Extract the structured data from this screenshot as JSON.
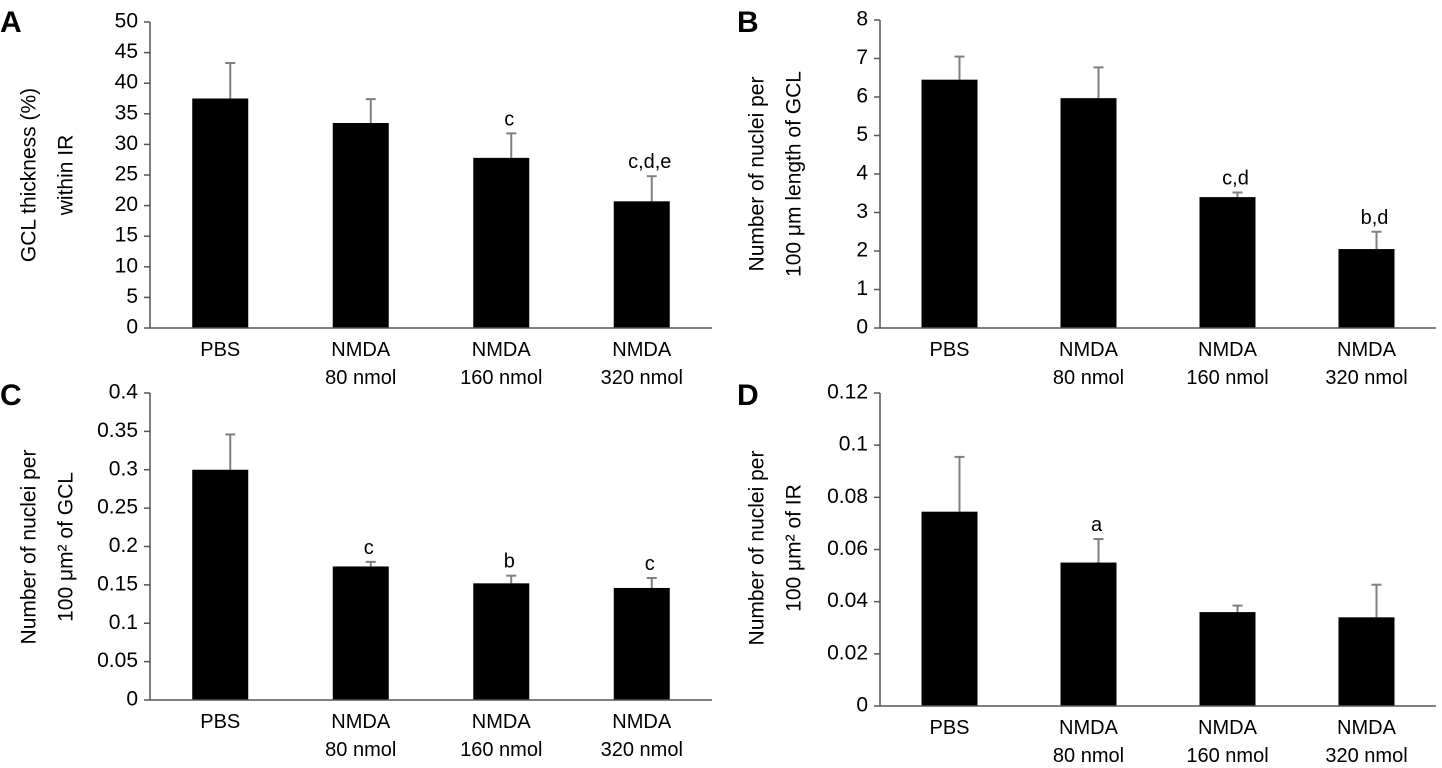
{
  "chart_data": [
    {
      "panel": "A",
      "type": "bar",
      "categories": [
        [
          "PBS"
        ],
        [
          "NMDA",
          "80 nmol"
        ],
        [
          "NMDA",
          "160 nmol"
        ],
        [
          "NMDA",
          "320 nmol"
        ]
      ],
      "values": [
        37.5,
        33.5,
        27.8,
        20.7
      ],
      "errors": [
        5.8,
        3.9,
        4.0,
        4.1
      ],
      "annotations": [
        "",
        "",
        "c",
        "c,d,e"
      ],
      "ylabel": [
        "GCL thickness (%)",
        "within IR"
      ],
      "ylim": [
        0,
        50
      ],
      "yticks": [
        "0",
        "5",
        "10",
        "15",
        "20",
        "25",
        "30",
        "35",
        "40",
        "45",
        "50"
      ]
    },
    {
      "panel": "B",
      "type": "bar",
      "categories": [
        [
          "PBS"
        ],
        [
          "NMDA",
          "80 nmol"
        ],
        [
          "NMDA",
          "160 nmol"
        ],
        [
          "NMDA",
          "320 nmol"
        ]
      ],
      "values": [
        6.45,
        5.97,
        3.4,
        2.05
      ],
      "errors": [
        0.6,
        0.8,
        0.12,
        0.45
      ],
      "annotations": [
        "",
        "",
        "c,d",
        "b,d"
      ],
      "ylabel": [
        "Number of nuclei per",
        "100 μm length of GCL"
      ],
      "ylim": [
        0,
        8
      ],
      "yticks": [
        "0",
        "1",
        "2",
        "3",
        "4",
        "5",
        "6",
        "7",
        "8"
      ]
    },
    {
      "panel": "C",
      "type": "bar",
      "categories": [
        [
          "PBS"
        ],
        [
          "NMDA",
          "80 nmol"
        ],
        [
          "NMDA",
          "160 nmol"
        ],
        [
          "NMDA",
          "320 nmol"
        ]
      ],
      "values": [
        0.3,
        0.174,
        0.152,
        0.146
      ],
      "errors": [
        0.046,
        0.006,
        0.01,
        0.013
      ],
      "annotations": [
        "",
        "c",
        "b",
        "c"
      ],
      "ylabel": [
        "Number of nuclei per",
        "100 μm² of GCL"
      ],
      "ylim": [
        0,
        0.4
      ],
      "yticks": [
        "0",
        "0.05",
        "0.1",
        "0.15",
        "0.2",
        "0.25",
        "0.3",
        "0.35",
        "0.4"
      ]
    },
    {
      "panel": "D",
      "type": "bar",
      "categories": [
        [
          "PBS"
        ],
        [
          "NMDA",
          "80 nmol"
        ],
        [
          "NMDA",
          "160 nmol"
        ],
        [
          "NMDA",
          "320 nmol"
        ]
      ],
      "values": [
        0.0745,
        0.055,
        0.036,
        0.034
      ],
      "errors": [
        0.021,
        0.009,
        0.0025,
        0.0125
      ],
      "annotations": [
        "",
        "a",
        "",
        ""
      ],
      "ylabel": [
        "Number of nuclei per",
        "100 μm² of IR"
      ],
      "ylim": [
        0,
        0.12
      ],
      "yticks": [
        "0",
        "0.02",
        "0.04",
        "0.06",
        "0.08",
        "0.1",
        "0.12"
      ]
    }
  ],
  "colors": {
    "bar": "#000000",
    "error": "#7f7f7f",
    "axis": "#555555"
  }
}
